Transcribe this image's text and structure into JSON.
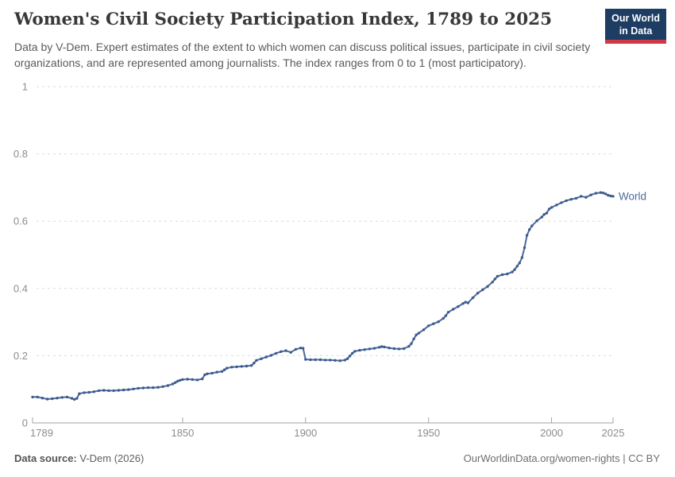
{
  "header": {
    "title": "Women's Civil Society Participation Index, 1789 to 2025",
    "subtitle": "Data by V-Dem. Expert estimates of the extent to which women can discuss political issues, participate in civil society organizations, and are represented among journalists. The index ranges from 0 to 1 (most participatory).",
    "logo": {
      "line1": "Our World",
      "line2": "in Data",
      "bg_color": "#1d3d63",
      "bar_color": "#cf3a47"
    }
  },
  "chart_data": {
    "type": "line",
    "title": "Women's Civil Society Participation Index, 1789 to 2025",
    "xlabel": "",
    "ylabel": "",
    "xlim": [
      1789,
      2025
    ],
    "ylim": [
      0,
      1
    ],
    "grid": "horizontal-dashed",
    "x_ticks": [
      1789,
      1850,
      1900,
      1950,
      2000,
      2025
    ],
    "y_ticks": [
      {
        "value": 0,
        "label": "0"
      },
      {
        "value": 0.2,
        "label": "0.2"
      },
      {
        "value": 0.4,
        "label": "0.4"
      },
      {
        "value": 0.6,
        "label": "0.6"
      },
      {
        "value": 0.8,
        "label": "0.8"
      },
      {
        "value": 1,
        "label": "1"
      }
    ],
    "series": [
      {
        "name": "World",
        "color": "#4C6A9C",
        "marker_color": "#3d5a8f",
        "points": [
          [
            1789,
            0.077
          ],
          [
            1791,
            0.077
          ],
          [
            1793,
            0.074
          ],
          [
            1795,
            0.071
          ],
          [
            1797,
            0.072
          ],
          [
            1799,
            0.074
          ],
          [
            1801,
            0.076
          ],
          [
            1803,
            0.077
          ],
          [
            1805,
            0.073
          ],
          [
            1806,
            0.07
          ],
          [
            1807,
            0.073
          ],
          [
            1808,
            0.087
          ],
          [
            1810,
            0.09
          ],
          [
            1812,
            0.091
          ],
          [
            1814,
            0.093
          ],
          [
            1816,
            0.096
          ],
          [
            1818,
            0.097
          ],
          [
            1820,
            0.096
          ],
          [
            1822,
            0.096
          ],
          [
            1824,
            0.097
          ],
          [
            1826,
            0.098
          ],
          [
            1828,
            0.099
          ],
          [
            1830,
            0.101
          ],
          [
            1832,
            0.103
          ],
          [
            1834,
            0.104
          ],
          [
            1836,
            0.105
          ],
          [
            1838,
            0.105
          ],
          [
            1840,
            0.106
          ],
          [
            1842,
            0.108
          ],
          [
            1844,
            0.111
          ],
          [
            1846,
            0.116
          ],
          [
            1847,
            0.12
          ],
          [
            1848,
            0.124
          ],
          [
            1849,
            0.127
          ],
          [
            1850,
            0.129
          ],
          [
            1852,
            0.13
          ],
          [
            1854,
            0.129
          ],
          [
            1856,
            0.128
          ],
          [
            1858,
            0.131
          ],
          [
            1859,
            0.143
          ],
          [
            1860,
            0.146
          ],
          [
            1862,
            0.148
          ],
          [
            1864,
            0.151
          ],
          [
            1866,
            0.153
          ],
          [
            1867,
            0.158
          ],
          [
            1868,
            0.163
          ],
          [
            1870,
            0.166
          ],
          [
            1872,
            0.167
          ],
          [
            1874,
            0.168
          ],
          [
            1876,
            0.169
          ],
          [
            1878,
            0.171
          ],
          [
            1879,
            0.178
          ],
          [
            1880,
            0.186
          ],
          [
            1882,
            0.191
          ],
          [
            1884,
            0.196
          ],
          [
            1886,
            0.201
          ],
          [
            1888,
            0.207
          ],
          [
            1890,
            0.212
          ],
          [
            1892,
            0.215
          ],
          [
            1894,
            0.21
          ],
          [
            1896,
            0.219
          ],
          [
            1898,
            0.223
          ],
          [
            1899,
            0.222
          ],
          [
            1900,
            0.189
          ],
          [
            1902,
            0.188
          ],
          [
            1904,
            0.188
          ],
          [
            1906,
            0.188
          ],
          [
            1908,
            0.187
          ],
          [
            1910,
            0.187
          ],
          [
            1912,
            0.186
          ],
          [
            1914,
            0.185
          ],
          [
            1916,
            0.187
          ],
          [
            1917,
            0.191
          ],
          [
            1918,
            0.199
          ],
          [
            1919,
            0.207
          ],
          [
            1920,
            0.213
          ],
          [
            1922,
            0.216
          ],
          [
            1924,
            0.218
          ],
          [
            1926,
            0.22
          ],
          [
            1928,
            0.222
          ],
          [
            1930,
            0.225
          ],
          [
            1931,
            0.227
          ],
          [
            1932,
            0.226
          ],
          [
            1934,
            0.223
          ],
          [
            1936,
            0.221
          ],
          [
            1938,
            0.22
          ],
          [
            1940,
            0.221
          ],
          [
            1942,
            0.228
          ],
          [
            1943,
            0.236
          ],
          [
            1944,
            0.25
          ],
          [
            1945,
            0.262
          ],
          [
            1946,
            0.267
          ],
          [
            1948,
            0.277
          ],
          [
            1950,
            0.289
          ],
          [
            1952,
            0.295
          ],
          [
            1954,
            0.301
          ],
          [
            1956,
            0.311
          ],
          [
            1957,
            0.319
          ],
          [
            1958,
            0.329
          ],
          [
            1960,
            0.338
          ],
          [
            1962,
            0.346
          ],
          [
            1964,
            0.355
          ],
          [
            1965,
            0.359
          ],
          [
            1966,
            0.357
          ],
          [
            1968,
            0.372
          ],
          [
            1970,
            0.386
          ],
          [
            1972,
            0.396
          ],
          [
            1974,
            0.406
          ],
          [
            1976,
            0.419
          ],
          [
            1977,
            0.428
          ],
          [
            1978,
            0.436
          ],
          [
            1980,
            0.441
          ],
          [
            1982,
            0.443
          ],
          [
            1984,
            0.449
          ],
          [
            1985,
            0.456
          ],
          [
            1986,
            0.466
          ],
          [
            1987,
            0.476
          ],
          [
            1988,
            0.492
          ],
          [
            1989,
            0.521
          ],
          [
            1990,
            0.558
          ],
          [
            1991,
            0.575
          ],
          [
            1992,
            0.586
          ],
          [
            1994,
            0.601
          ],
          [
            1996,
            0.612
          ],
          [
            1997,
            0.62
          ],
          [
            1998,
            0.624
          ],
          [
            1999,
            0.636
          ],
          [
            2000,
            0.641
          ],
          [
            2002,
            0.648
          ],
          [
            2004,
            0.655
          ],
          [
            2006,
            0.661
          ],
          [
            2008,
            0.665
          ],
          [
            2010,
            0.668
          ],
          [
            2012,
            0.674
          ],
          [
            2014,
            0.671
          ],
          [
            2016,
            0.678
          ],
          [
            2018,
            0.683
          ],
          [
            2020,
            0.685
          ],
          [
            2021,
            0.684
          ],
          [
            2022,
            0.681
          ],
          [
            2023,
            0.677
          ],
          [
            2024,
            0.675
          ],
          [
            2025,
            0.674
          ]
        ],
        "end_label": "World"
      }
    ],
    "legend_position": "end-of-line",
    "axis_color": "#a3a3a3",
    "gridline_color": "#dcdcdc",
    "tick_label_color": "#8c8c8c"
  },
  "footer": {
    "source_label": "Data source:",
    "source_value": "V-Dem (2026)",
    "credit": "OurWorldinData.org/women-rights | CC BY"
  }
}
